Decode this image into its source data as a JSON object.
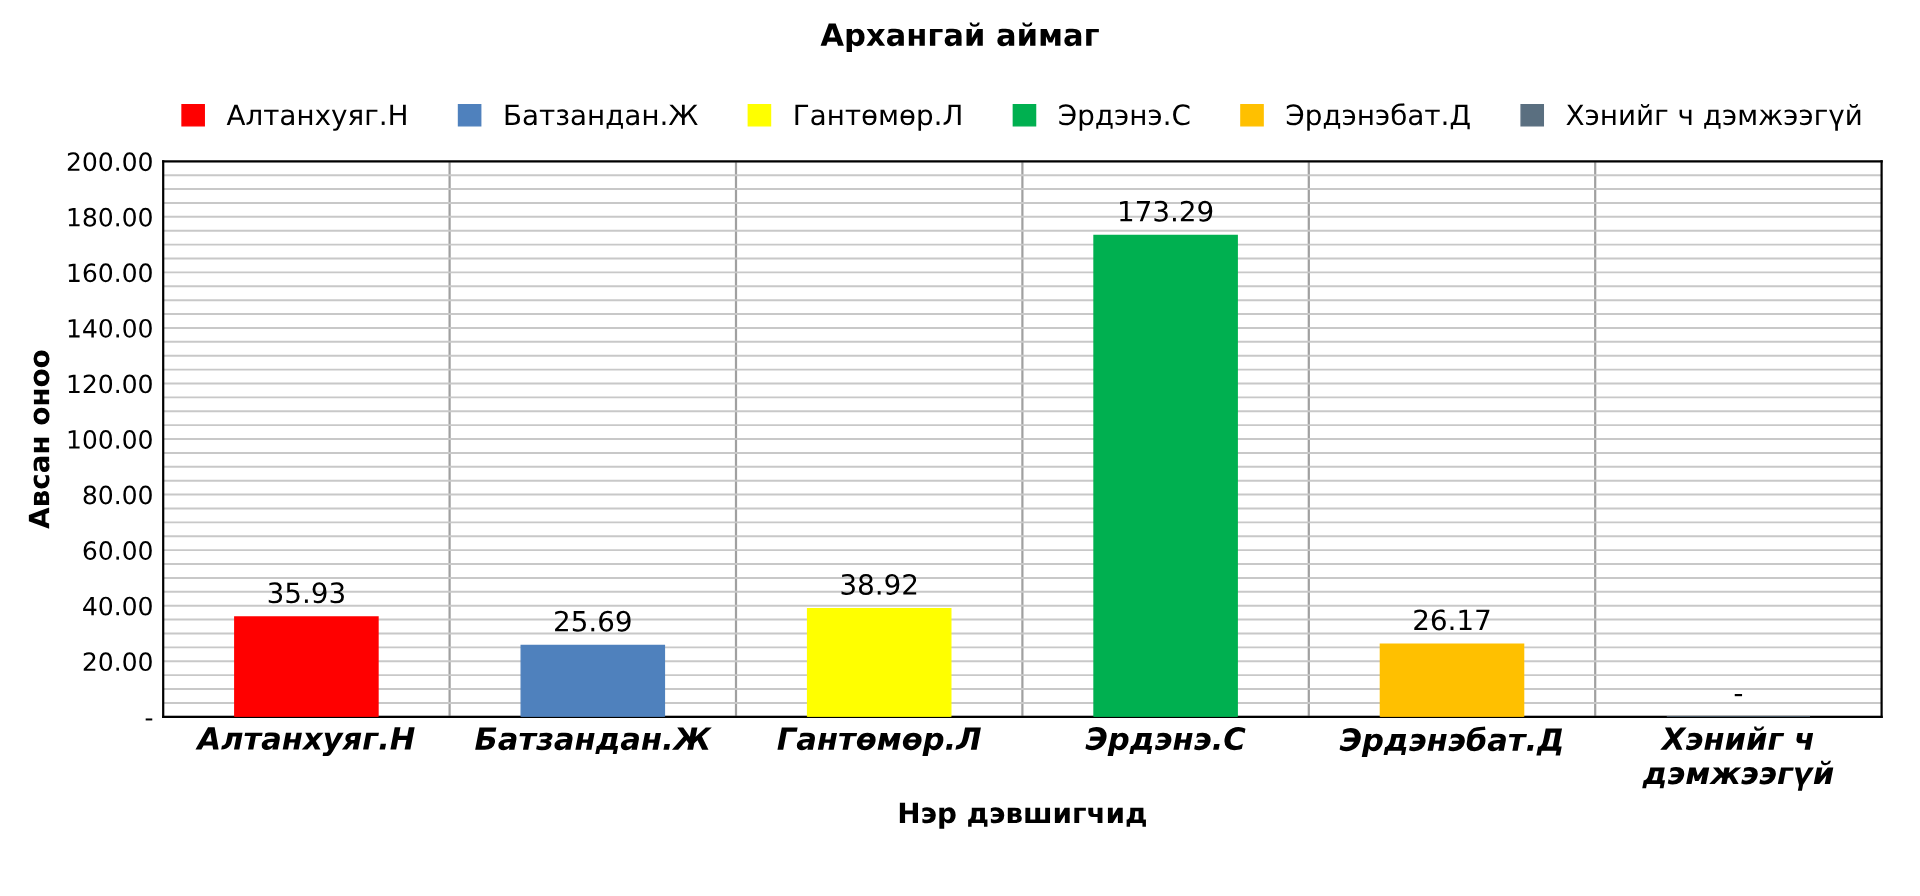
{
  "chart_data": {
    "type": "bar",
    "title": "Архангай аймаг",
    "xlabel": "Нэр дэвшигчид",
    "ylabel": "Авсан оноо",
    "categories": [
      "Алтанхуяг.Н",
      "Батзандан.Ж",
      "Гантөмөр.Л",
      "Эрдэнэ.С",
      "Эрдэнэбат.Д",
      "Хэнийг ч\nдэмжээгүй"
    ],
    "series": [
      {
        "name": "Алтанхуяг.Н",
        "color": "#ff0000",
        "values": [
          35.93,
          null,
          null,
          null,
          null,
          null
        ],
        "value_labels": [
          "35.93",
          null,
          null,
          null,
          null,
          null
        ]
      },
      {
        "name": "Батзандан.Ж",
        "color": "#4f81bd",
        "values": [
          null,
          25.69,
          null,
          null,
          null,
          null
        ],
        "value_labels": [
          null,
          "25.69",
          null,
          null,
          null,
          null
        ]
      },
      {
        "name": "Гантөмөр.Л",
        "color": "#ffff00",
        "values": [
          null,
          null,
          38.92,
          null,
          null,
          null
        ],
        "value_labels": [
          null,
          null,
          "38.92",
          null,
          null,
          null
        ]
      },
      {
        "name": "Эрдэнэ.С",
        "color": "#00b050",
        "values": [
          null,
          null,
          null,
          173.29,
          null,
          null
        ],
        "value_labels": [
          null,
          null,
          null,
          "173.29",
          null,
          null
        ]
      },
      {
        "name": "Эрдэнэбат.Д",
        "color": "#ffc000",
        "values": [
          null,
          null,
          null,
          null,
          26.17,
          null
        ],
        "value_labels": [
          null,
          null,
          null,
          null,
          "26.17",
          null
        ]
      },
      {
        "name": "Хэнийг ч дэмжээгүй",
        "color": "#5a6f80",
        "values": [
          null,
          null,
          null,
          null,
          null,
          0
        ],
        "value_labels": [
          null,
          null,
          null,
          null,
          null,
          "-"
        ]
      }
    ],
    "legend": "top",
    "grid": true,
    "ylim": [
      0,
      200
    ],
    "yticks": [
      {
        "value": 0,
        "label": "-"
      },
      {
        "value": 5,
        "label": null
      },
      {
        "value": 10,
        "label": null
      },
      {
        "value": 15,
        "label": null
      },
      {
        "value": 20,
        "label": "20.00"
      },
      {
        "value": 25,
        "label": null
      },
      {
        "value": 30,
        "label": null
      },
      {
        "value": 35,
        "label": null
      },
      {
        "value": 40,
        "label": "40.00"
      },
      {
        "value": 45,
        "label": null
      },
      {
        "value": 50,
        "label": null
      },
      {
        "value": 55,
        "label": null
      },
      {
        "value": 60,
        "label": "60.00"
      },
      {
        "value": 65,
        "label": null
      },
      {
        "value": 70,
        "label": null
      },
      {
        "value": 75,
        "label": null
      },
      {
        "value": 80,
        "label": "80.00"
      },
      {
        "value": 85,
        "label": null
      },
      {
        "value": 90,
        "label": null
      },
      {
        "value": 95,
        "label": null
      },
      {
        "value": 100,
        "label": "100.00"
      },
      {
        "value": 105,
        "label": null
      },
      {
        "value": 110,
        "label": null
      },
      {
        "value": 115,
        "label": null
      },
      {
        "value": 120,
        "label": "120.00"
      },
      {
        "value": 125,
        "label": null
      },
      {
        "value": 130,
        "label": null
      },
      {
        "value": 135,
        "label": null
      },
      {
        "value": 140,
        "label": "140.00"
      },
      {
        "value": 145,
        "label": null
      },
      {
        "value": 150,
        "label": null
      },
      {
        "value": 155,
        "label": null
      },
      {
        "value": 160,
        "label": "160.00"
      },
      {
        "value": 165,
        "label": null
      },
      {
        "value": 170,
        "label": null
      },
      {
        "value": 175,
        "label": null
      },
      {
        "value": 180,
        "label": "180.00"
      },
      {
        "value": 185,
        "label": null
      },
      {
        "value": 190,
        "label": null
      },
      {
        "value": 195,
        "label": null
      },
      {
        "value": 200,
        "label": "200.00"
      }
    ]
  }
}
